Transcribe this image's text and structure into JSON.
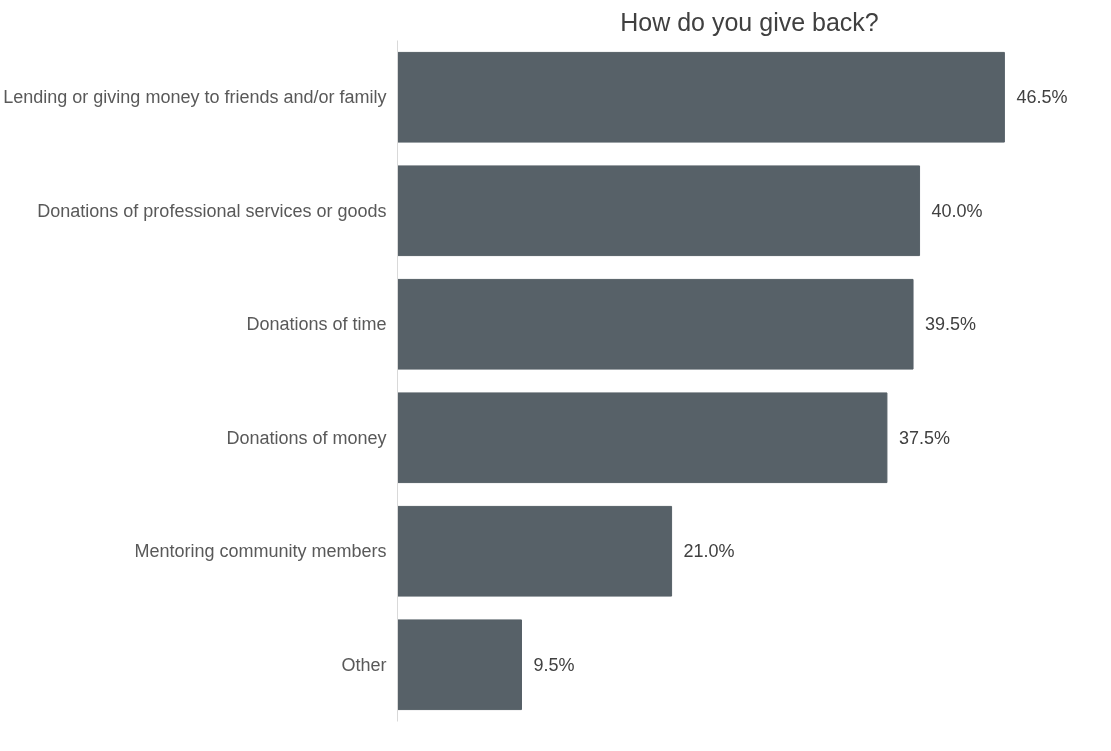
{
  "chart_data": {
    "type": "bar",
    "orientation": "horizontal",
    "title": "How do you give back?",
    "categories": [
      "Lending or giving money to friends and/or family",
      "Donations of professional services or goods",
      "Donations of time",
      "Donations of money",
      "Mentoring community members",
      "Other"
    ],
    "values": [
      46.5,
      40.0,
      39.5,
      37.5,
      21.0,
      9.5
    ],
    "value_labels": [
      "46.5%",
      "40.0%",
      "39.5%",
      "37.5%",
      "21.0%",
      "9.5%"
    ],
    "color": "#576168",
    "tick_labels": "y"
  }
}
